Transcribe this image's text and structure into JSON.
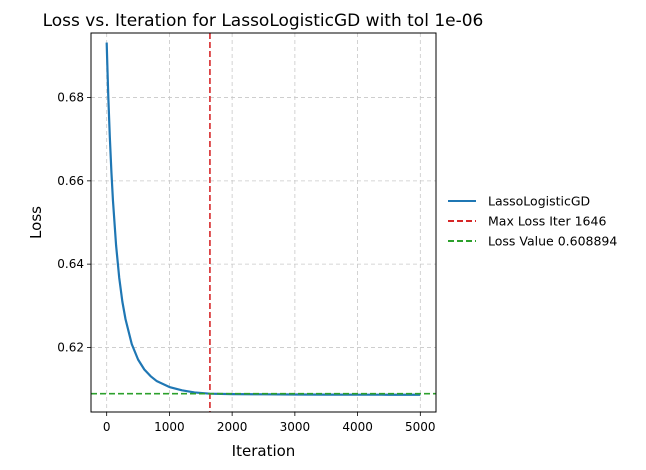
{
  "chart_data": {
    "type": "line",
    "title": "Loss vs. Iteration for LassoLogisticGD with tol 1e-06",
    "xlabel": "Iteration",
    "ylabel": "Loss",
    "xlim": [
      -250,
      5250
    ],
    "ylim": [
      0.6045,
      0.6955
    ],
    "x_ticks": [
      0,
      1000,
      2000,
      3000,
      4000,
      5000
    ],
    "y_ticks": [
      0.62,
      0.64,
      0.66,
      0.68
    ],
    "grid": true,
    "legend_placement": "outside-right",
    "series": [
      {
        "name": "LassoLogisticGD",
        "color": "#1f77b4",
        "style": "solid",
        "x": [
          0,
          10,
          25,
          50,
          75,
          100,
          150,
          200,
          250,
          300,
          400,
          500,
          600,
          700,
          800,
          1000,
          1200,
          1400,
          1646,
          2000,
          2500,
          3000,
          3500,
          4000,
          4500,
          5000
        ],
        "y": [
          0.6932,
          0.688,
          0.6805,
          0.6705,
          0.6622,
          0.6553,
          0.6445,
          0.6367,
          0.631,
          0.6268,
          0.6208,
          0.6171,
          0.6147,
          0.6131,
          0.6119,
          0.6105,
          0.6097,
          0.6092,
          0.6089,
          0.6088,
          0.60875,
          0.6087,
          0.60868,
          0.60866,
          0.60865,
          0.60864
        ]
      }
    ],
    "reference_lines": [
      {
        "name": "Max Loss Iter 1646",
        "orientation": "vertical",
        "value": 1646,
        "color": "#d62728",
        "style": "dashed"
      },
      {
        "name": "Loss Value 0.608894",
        "orientation": "horizontal",
        "value": 0.608894,
        "color": "#2ca02c",
        "style": "dashed"
      }
    ]
  }
}
